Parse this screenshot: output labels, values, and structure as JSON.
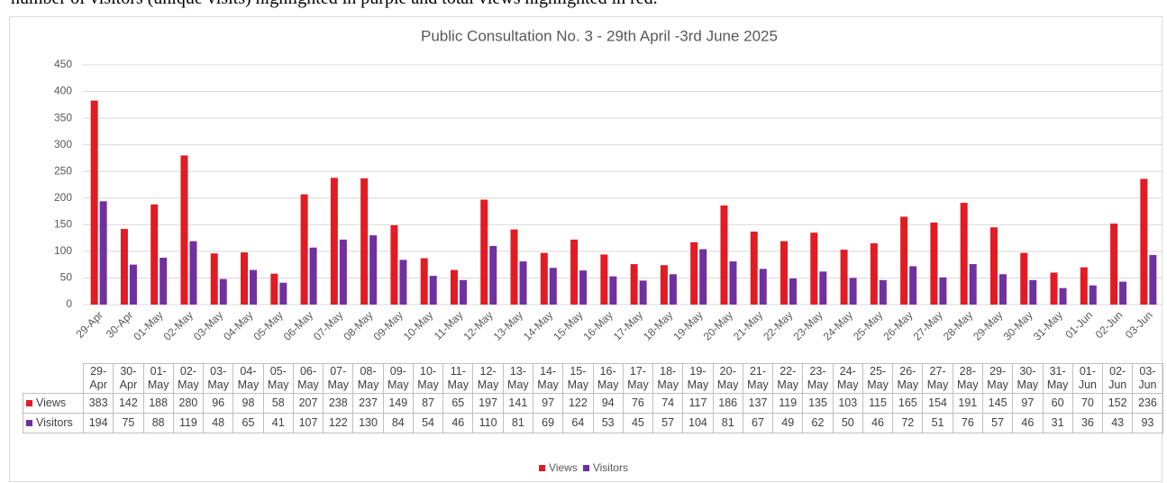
{
  "caption": "number of visitors (unique visits) highlighted in purple and total views highlighted in red.",
  "chart_data": {
    "type": "bar",
    "title": "Public Consultation No. 3 - 29th April -3rd June 2025",
    "categories": [
      "29-Apr",
      "30-Apr",
      "01-May",
      "02-May",
      "03-May",
      "04-May",
      "05-May",
      "06-May",
      "07-May",
      "08-May",
      "09-May",
      "10-May",
      "11-May",
      "12-May",
      "13-May",
      "14-May",
      "15-May",
      "16-May",
      "17-May",
      "18-May",
      "19-May",
      "20-May",
      "21-May",
      "22-May",
      "23-May",
      "24-May",
      "25-May",
      "26-May",
      "27-May",
      "28-May",
      "29-May",
      "30-May",
      "31-May",
      "01-Jun",
      "02-Jun",
      "03-Jun"
    ],
    "series": [
      {
        "name": "Views",
        "color": "#e31b23",
        "values": [
          383,
          142,
          188,
          280,
          96,
          98,
          58,
          207,
          238,
          237,
          149,
          87,
          65,
          197,
          141,
          97,
          122,
          94,
          76,
          74,
          117,
          186,
          137,
          119,
          135,
          103,
          115,
          165,
          154,
          191,
          145,
          97,
          60,
          70,
          152,
          236
        ]
      },
      {
        "name": "Visitors",
        "color": "#7030a0",
        "values": [
          194,
          75,
          88,
          119,
          48,
          65,
          41,
          107,
          122,
          130,
          84,
          54,
          46,
          110,
          81,
          69,
          64,
          53,
          45,
          57,
          104,
          81,
          67,
          49,
          62,
          50,
          46,
          72,
          51,
          76,
          57,
          46,
          31,
          36,
          43,
          93
        ]
      }
    ],
    "ylim": [
      0,
      450
    ],
    "yticks": [
      0,
      50,
      100,
      150,
      200,
      250,
      300,
      350,
      400,
      450
    ],
    "grid": true,
    "legend": "bottom",
    "data_table": true
  }
}
